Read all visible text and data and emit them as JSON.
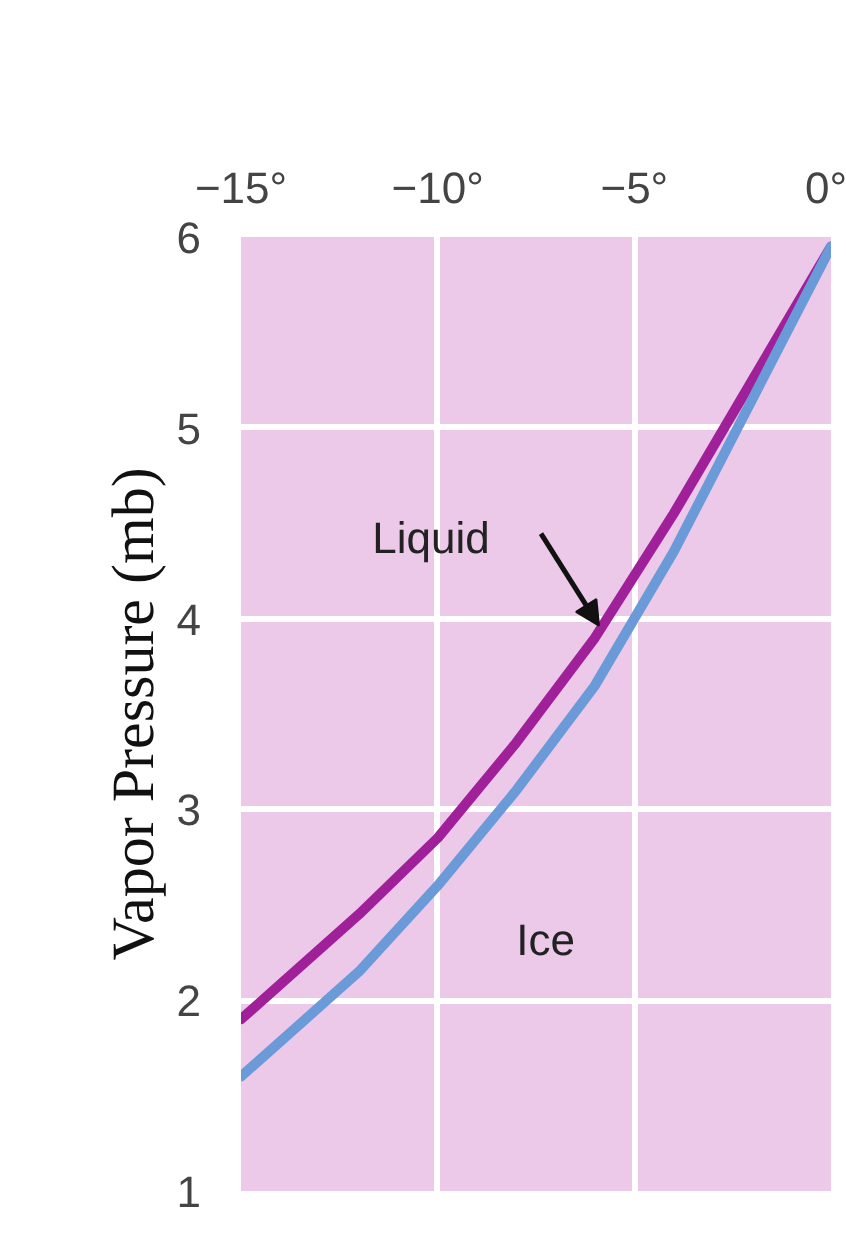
{
  "chart_data": {
    "type": "line",
    "ylabel": "Vapor Pressure (mb)",
    "x": [
      -15,
      -12,
      -10,
      -8,
      -6,
      -4,
      -2,
      0
    ],
    "xlim": [
      -15,
      0
    ],
    "xticks": [
      {
        "value": -15,
        "label": "−15°"
      },
      {
        "value": -10,
        "label": "−10°"
      },
      {
        "value": -5,
        "label": "−5°"
      },
      {
        "value": 0,
        "label": "0°"
      }
    ],
    "ylim": [
      1,
      6
    ],
    "yticks": [
      1,
      2,
      3,
      4,
      5,
      6
    ],
    "grid": true,
    "legend": false,
    "marker": "none",
    "line_style": "solid",
    "series": [
      {
        "name": "Liquid",
        "color": "#a0209a",
        "values": [
          1.9,
          2.45,
          2.85,
          3.35,
          3.9,
          4.55,
          5.25,
          5.95
        ]
      },
      {
        "name": "Ice",
        "color": "#6a9ad8",
        "values": [
          1.6,
          2.15,
          2.6,
          3.1,
          3.65,
          4.35,
          5.15,
          5.95
        ]
      }
    ]
  }
}
